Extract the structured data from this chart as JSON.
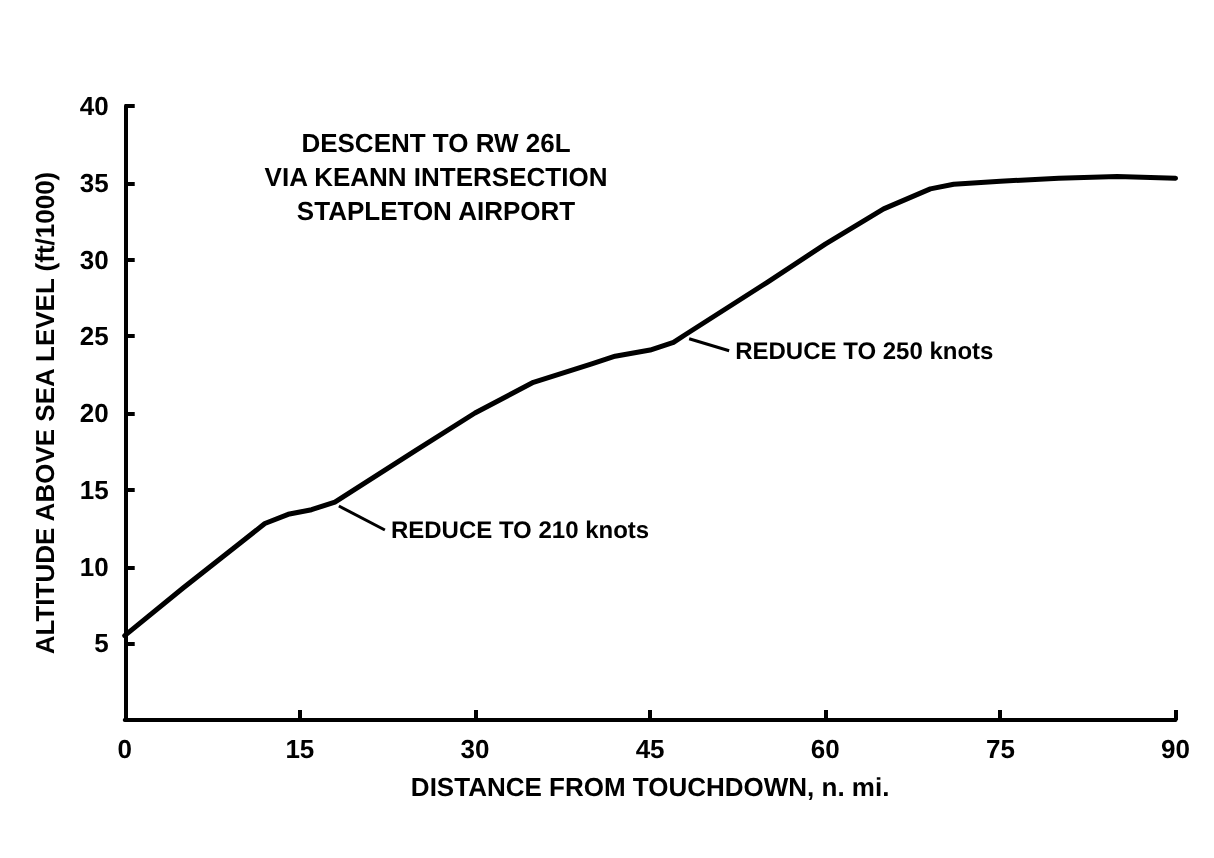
{
  "chart_data": {
    "type": "line",
    "title": "DESCENT TO RW 26L\nVIA KEANN INTERSECTION\nSTAPLETON AIRPORT",
    "xlabel": "DISTANCE FROM TOUCHDOWN, n. mi.",
    "ylabel": "ALTITUDE ABOVE SEA LEVEL (ft/1000)",
    "x": [
      0,
      5,
      10,
      12,
      14,
      16,
      18,
      25,
      30,
      35,
      40,
      42,
      45,
      47,
      48,
      55,
      60,
      65,
      69,
      71,
      75,
      80,
      85,
      90
    ],
    "series": [
      {
        "color": "#000000",
        "values": [
          5.5,
          8.6,
          11.6,
          12.8,
          13.4,
          13.7,
          14.2,
          17.6,
          20.0,
          22.0,
          23.2,
          23.7,
          24.1,
          24.6,
          25.1,
          28.5,
          31.0,
          33.3,
          34.6,
          34.9,
          35.1,
          35.3,
          35.4,
          35.3
        ]
      }
    ],
    "xlim": [
      0,
      90
    ],
    "xticks": [
      0,
      15,
      30,
      45,
      60,
      75,
      90
    ],
    "ylim": [
      0,
      40
    ],
    "yticks": [
      5,
      10,
      15,
      20,
      25,
      30,
      35,
      40
    ],
    "annotations": [
      {
        "text": "REDUCE TO 210 knots",
        "x": 18,
        "y": 14.2
      },
      {
        "text": "REDUCE TO 250 knots",
        "x": 48,
        "y": 25.1
      }
    ],
    "grid": false,
    "marker": "none",
    "line_style": "solid"
  }
}
